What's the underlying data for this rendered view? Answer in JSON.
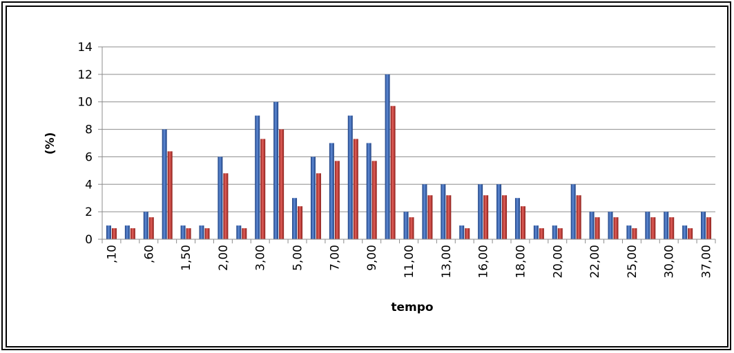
{
  "chart_data": {
    "type": "bar",
    "title": "",
    "xlabel": "tempo",
    "ylabel": "(%)",
    "ylim": [
      0,
      14
    ],
    "yticks": [
      0,
      2,
      4,
      6,
      8,
      10,
      12,
      14
    ],
    "grid": true,
    "legend": "none",
    "colors": [
      "#2f5aa8",
      "#c0312b"
    ],
    "categories": [
      ",10",
      "",
      ",60",
      "",
      "1,50",
      "",
      "2,00",
      "",
      "3,00",
      "",
      "5,00",
      "",
      "7,00",
      "",
      "9,00",
      "",
      "11,00",
      "",
      "13,00",
      "",
      "16,00",
      "",
      "18,00",
      "",
      "20,00",
      "",
      "22,00",
      "",
      "25,00",
      "",
      "30,00",
      "",
      "37,00"
    ],
    "series": [
      {
        "values": [
          1,
          1,
          2,
          8,
          1,
          1,
          6,
          1,
          9,
          10,
          3,
          6,
          7,
          9,
          7,
          12,
          2,
          4,
          4,
          1,
          4,
          4,
          3,
          1,
          1,
          4,
          2,
          2,
          1,
          2,
          2,
          1,
          2
        ]
      },
      {
        "values": [
          0.8,
          0.8,
          1.6,
          6.4,
          0.8,
          0.8,
          4.8,
          0.8,
          7.3,
          8.0,
          2.4,
          4.8,
          5.7,
          7.3,
          5.7,
          9.7,
          1.6,
          3.2,
          3.2,
          0.8,
          3.2,
          3.2,
          2.4,
          0.8,
          0.8,
          3.2,
          1.6,
          1.6,
          0.8,
          1.6,
          1.6,
          0.8,
          1.6
        ]
      }
    ]
  }
}
